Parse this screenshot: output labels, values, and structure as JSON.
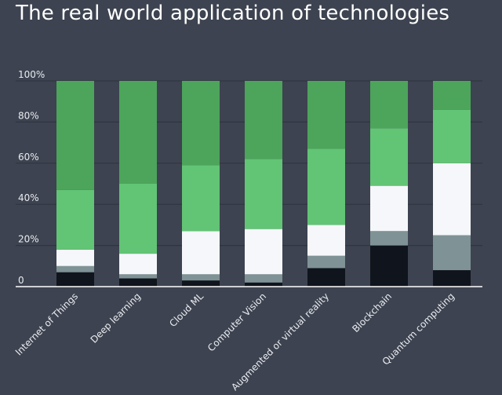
{
  "title": "The real world application of technologies",
  "chart_data": {
    "type": "bar",
    "stacked": true,
    "title": "The real world application of technologies",
    "categories": [
      "Internet of Things",
      "Deep learning",
      "Cloud ML",
      "Computer Vision",
      "Augmented or virtual reality",
      "Blockchain",
      "Quantum computing"
    ],
    "series": [
      {
        "color": "#10141c",
        "values": [
          7,
          4,
          3,
          2,
          9,
          20,
          8
        ]
      },
      {
        "color": "#7f9295",
        "values": [
          3,
          2,
          3,
          4,
          6,
          7,
          17
        ]
      },
      {
        "color": "#f5f7fa",
        "values": [
          8,
          10,
          21,
          22,
          15,
          22,
          35
        ]
      },
      {
        "color": "#62c475",
        "values": [
          29,
          34,
          32,
          34,
          37,
          28,
          26
        ]
      },
      {
        "color": "#4da45b",
        "values": [
          53,
          50,
          41,
          38,
          33,
          23,
          14
        ]
      }
    ],
    "ylim": [
      0,
      100
    ],
    "yticks": [
      "0",
      "20%",
      "40%",
      "60%",
      "80%",
      "100%"
    ],
    "grid": true,
    "xlabel": "",
    "ylabel": ""
  }
}
